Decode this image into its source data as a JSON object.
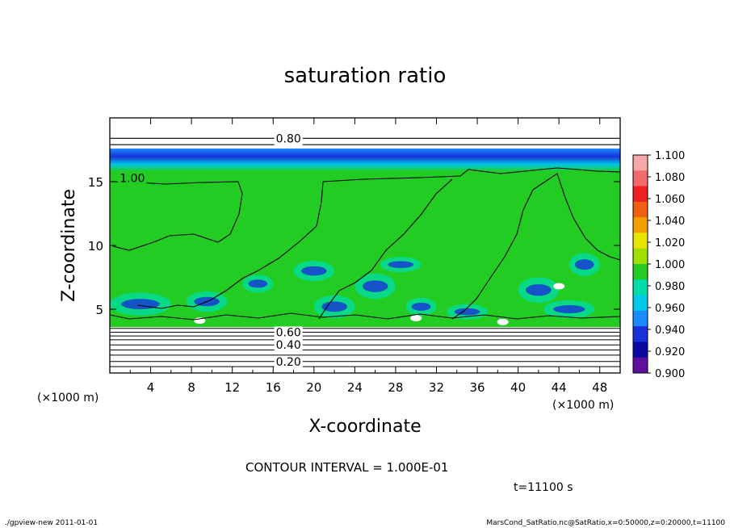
{
  "chart_data": {
    "type": "heatmap",
    "title": "saturation ratio",
    "xlabel": "X-coordinate",
    "ylabel": "Z-coordinate",
    "x_unit_left": "(×1000 m)",
    "x_unit_right": "(×1000 m)",
    "xlim": [
      0,
      50
    ],
    "ylim": [
      0,
      20
    ],
    "x_ticks": [
      4,
      8,
      12,
      16,
      20,
      24,
      28,
      32,
      36,
      40,
      44,
      48
    ],
    "y_ticks": [
      5,
      10,
      15
    ],
    "colorbar": {
      "levels": [
        "1.100",
        "1.080",
        "1.060",
        "1.040",
        "1.020",
        "1.000",
        "0.980",
        "0.960",
        "0.940",
        "0.920",
        "0.900"
      ],
      "colors": [
        "#f7a8a8",
        "#f26a6a",
        "#ee2020",
        "#f06010",
        "#f3a000",
        "#e8e600",
        "#9fe000",
        "#22cc22",
        "#00ddaa",
        "#00c8e8",
        "#1a8cff",
        "#1a30d8",
        "#0a0aa0",
        "#6010a0"
      ]
    },
    "contour_labels": [
      {
        "x": 17.5,
        "z": 18.4,
        "label": "0.80"
      },
      {
        "x": 17.5,
        "z": 3.2,
        "label": "0.60"
      },
      {
        "x": 17.5,
        "z": 2.2,
        "label": "0.40"
      },
      {
        "x": 17.5,
        "z": 0.9,
        "label": "0.20"
      },
      {
        "x": 2.2,
        "z": 15.3,
        "label": "1.00"
      }
    ],
    "contour_interval_text": "CONTOUR INTERVAL = 1.000E-01",
    "time_text": "t=11100 s"
  },
  "footer": {
    "left": "./gpview-new   2011-01-01",
    "right": "MarsCond_SatRatio.nc@SatRatio,x=0:50000,z=0:20000,t=11100"
  }
}
